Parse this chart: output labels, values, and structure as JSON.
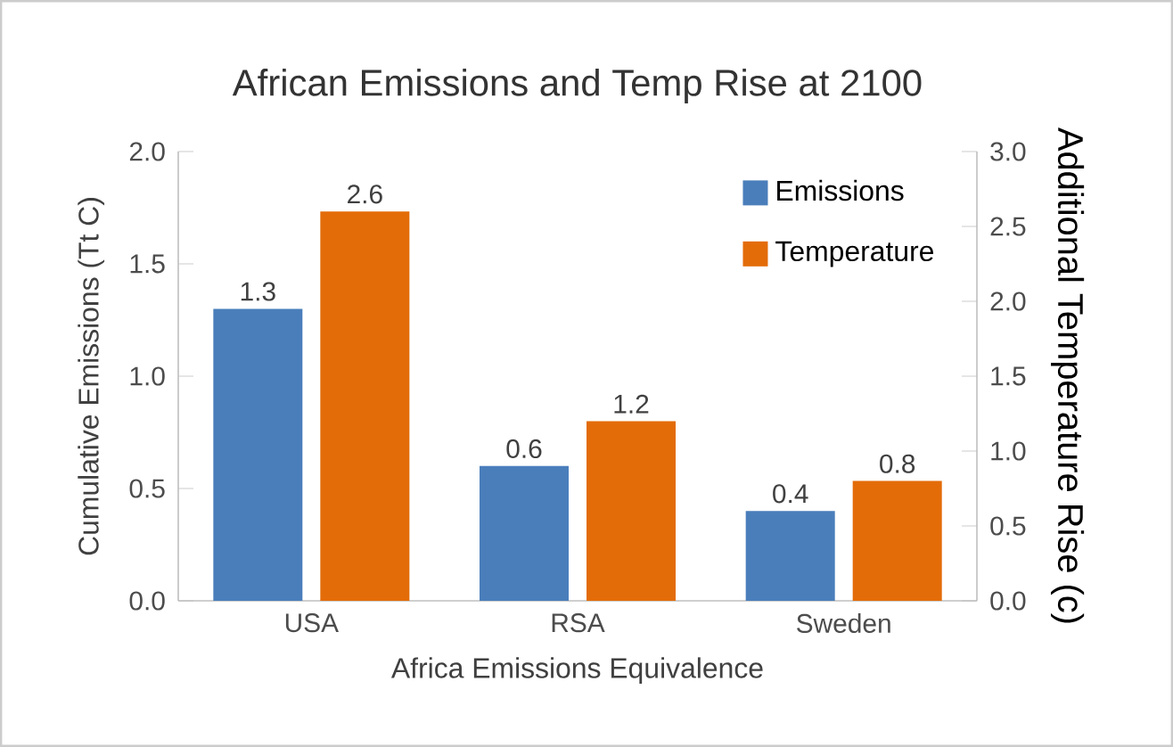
{
  "chart_data": {
    "type": "bar",
    "title": "African Emissions and Temp Rise at 2100",
    "xlabel": "Africa Emissions Equivalence",
    "ylabel": "Cumulative Emissions (Tt C)",
    "y2label": "Additional Temperature Rise (c)",
    "categories": [
      "USA",
      "RSA",
      "Sweden"
    ],
    "series": [
      {
        "name": "Emissions",
        "color": "#4a7ebb",
        "values": [
          1.3,
          0.6,
          0.4
        ]
      },
      {
        "name": "Temperature",
        "color": "#e36c09",
        "values": [
          2.6,
          1.2,
          0.8
        ],
        "axis": "y2"
      }
    ],
    "ylim": [
      0,
      2.0
    ],
    "yticks": [
      {
        "value": 0,
        "label": "0.0"
      },
      {
        "value": 0.5,
        "label": "0.5"
      },
      {
        "value": 1.0,
        "label": "1.0"
      },
      {
        "value": 1.5,
        "label": "1.5"
      },
      {
        "value": 2.0,
        "label": "2.0"
      }
    ],
    "y2lim": [
      0,
      3.0
    ],
    "y2ticks": [
      {
        "value": 0,
        "label": "0.0"
      },
      {
        "value": 0.5,
        "label": "0.5"
      },
      {
        "value": 1.0,
        "label": "1.0"
      },
      {
        "value": 1.5,
        "label": "1.5"
      },
      {
        "value": 2.0,
        "label": "2.0"
      },
      {
        "value": 2.5,
        "label": "2.5"
      },
      {
        "value": 3.0,
        "label": "3.0"
      }
    ],
    "data_labels": true,
    "legend": "top right"
  }
}
